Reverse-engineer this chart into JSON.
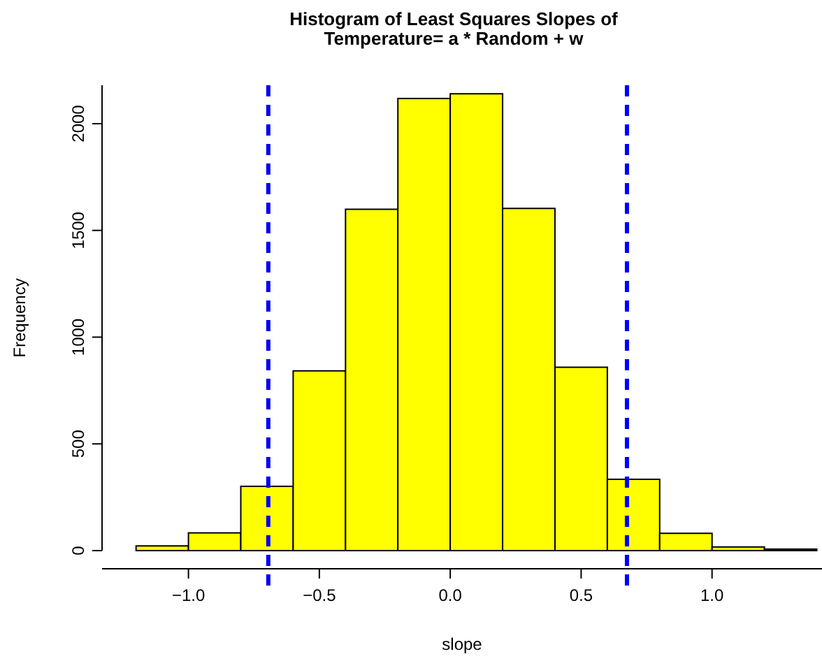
{
  "chart_data": {
    "type": "histogram",
    "title": "Histogram of Least Squares Slopes of\nTemperature= a * Random + w",
    "xlabel": "slope",
    "ylabel": "Frequency",
    "bins": [
      -1.2,
      -1.0,
      -0.8,
      -0.6,
      -0.4,
      -0.2,
      0.0,
      0.2,
      0.4,
      0.6,
      0.8,
      1.0,
      1.2,
      1.4
    ],
    "values": [
      22,
      83,
      301,
      842,
      1599,
      2118,
      2140,
      1603,
      859,
      334,
      81,
      17,
      7
    ],
    "color": "#ffff00",
    "xlim": [
      -1.33,
      1.42
    ],
    "xticks": [
      {
        "value": -1.0,
        "label": "−1.0"
      },
      {
        "value": -0.5,
        "label": "−0.5"
      },
      {
        "value": 0,
        "label": "0.0"
      },
      {
        "value": 0.5,
        "label": "0.5"
      },
      {
        "value": 1.0,
        "label": "1.0"
      }
    ],
    "ylim": [
      0,
      2180
    ],
    "yticks": [
      0,
      500,
      1000,
      1500,
      2000
    ],
    "ref_lines": [
      {
        "axis": "x",
        "value": -0.695,
        "color": "#0000ff",
        "line_style": "dashed"
      },
      {
        "axis": "x",
        "value": 0.675,
        "color": "#0000ff",
        "line_style": "dashed"
      }
    ],
    "grid": false
  }
}
